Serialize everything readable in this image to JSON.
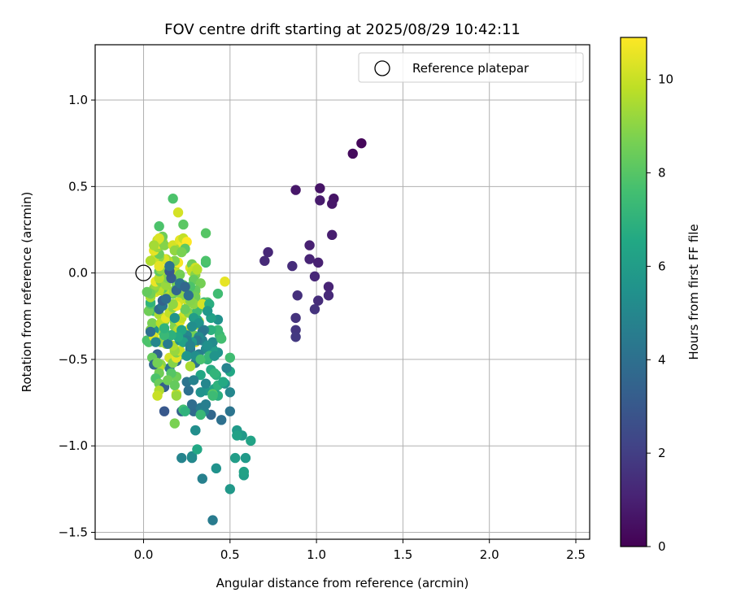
{
  "chart_data": {
    "type": "scatter",
    "title": "FOV centre drift starting at 2025/08/29 10:42:11",
    "xlabel": "Angular distance from reference (arcmin)",
    "ylabel": "Rotation from reference (arcmin)",
    "xlim": [
      -0.28,
      2.58
    ],
    "ylim": [
      -1.54,
      1.32
    ],
    "xticks": [
      0.0,
      0.5,
      1.0,
      1.5,
      2.0,
      2.5
    ],
    "xtick_labels": [
      "0.0",
      "0.5",
      "1.0",
      "1.5",
      "2.0",
      "2.5"
    ],
    "yticks": [
      1.0,
      0.5,
      0.0,
      -0.5,
      -1.0,
      -1.5
    ],
    "ytick_labels": [
      "1.0",
      "0.5",
      "0.0",
      "−0.5",
      "−1.0",
      "−1.5"
    ],
    "grid": true,
    "legend": {
      "position": "top-right",
      "entries": [
        "Reference platepar"
      ]
    },
    "reference_point": {
      "x": 0.0,
      "y": 0.0
    },
    "colorbar": {
      "label": "Hours from first FF file",
      "min": 0,
      "max": 10.9,
      "colormap": "viridis",
      "ticks": [
        0,
        2,
        4,
        6,
        8,
        10
      ],
      "tick_labels": [
        "0",
        "2",
        "4",
        "6",
        "8",
        "10"
      ]
    },
    "points": [
      [
        1.26,
        0.75,
        0.2
      ],
      [
        1.21,
        0.69,
        0.3
      ],
      [
        1.02,
        0.49,
        0.6
      ],
      [
        0.88,
        0.48,
        0.7
      ],
      [
        1.1,
        0.43,
        0.6
      ],
      [
        1.02,
        0.42,
        0.8
      ],
      [
        1.09,
        0.4,
        0.7
      ],
      [
        1.09,
        0.22,
        0.9
      ],
      [
        0.96,
        0.16,
        1.0
      ],
      [
        0.72,
        0.12,
        1.2
      ],
      [
        0.7,
        0.07,
        1.3
      ],
      [
        0.96,
        0.08,
        1.1
      ],
      [
        1.01,
        0.06,
        1.0
      ],
      [
        0.86,
        0.04,
        1.4
      ],
      [
        0.99,
        -0.02,
        1.2
      ],
      [
        1.07,
        -0.08,
        1.1
      ],
      [
        0.89,
        -0.13,
        1.5
      ],
      [
        1.07,
        -0.13,
        1.3
      ],
      [
        1.01,
        -0.16,
        1.4
      ],
      [
        0.99,
        -0.21,
        1.6
      ],
      [
        0.88,
        -0.26,
        1.6
      ],
      [
        0.88,
        -0.33,
        1.7
      ],
      [
        0.88,
        -0.37,
        1.8
      ],
      [
        0.4,
        -1.43,
        4.5
      ],
      [
        0.5,
        -1.25,
        5.8
      ],
      [
        0.34,
        -1.19,
        4.7
      ],
      [
        0.42,
        -1.13,
        5.5
      ],
      [
        0.58,
        -1.17,
        6.0
      ],
      [
        0.58,
        -1.15,
        6.2
      ],
      [
        0.22,
        -1.07,
        4.9
      ],
      [
        0.28,
        -1.07,
        5.0
      ],
      [
        0.28,
        -1.06,
        5.2
      ],
      [
        0.53,
        -1.07,
        6.0
      ],
      [
        0.59,
        -1.07,
        5.9
      ],
      [
        0.31,
        -1.02,
        6.5
      ],
      [
        0.62,
        -0.97,
        6.3
      ],
      [
        0.57,
        -0.94,
        5.8
      ],
      [
        0.54,
        -0.91,
        5.9
      ],
      [
        0.54,
        -0.94,
        6.2
      ],
      [
        0.3,
        -0.91,
        5.7
      ],
      [
        0.3,
        -0.91,
        5.3
      ],
      [
        0.39,
        -0.82,
        3.6
      ],
      [
        0.45,
        -0.85,
        4.0
      ],
      [
        0.5,
        -0.8,
        4.2
      ],
      [
        0.12,
        -0.8,
        3.0
      ],
      [
        0.22,
        -0.8,
        3.4
      ],
      [
        0.29,
        -0.8,
        3.8
      ],
      [
        0.33,
        -0.78,
        4.5
      ],
      [
        0.35,
        -0.8,
        4.8
      ],
      [
        0.23,
        -0.79,
        7.6
      ],
      [
        0.24,
        -0.8,
        7.0
      ],
      [
        0.33,
        -0.82,
        7.3
      ],
      [
        0.36,
        -0.76,
        4.6
      ],
      [
        0.28,
        -0.76,
        3.9
      ],
      [
        0.43,
        -0.71,
        6.8
      ],
      [
        0.5,
        -0.69,
        5.0
      ],
      [
        0.36,
        -0.68,
        5.8
      ],
      [
        0.4,
        -0.7,
        6.4
      ],
      [
        0.33,
        -0.69,
        5.5
      ],
      [
        0.26,
        -0.68,
        4.0
      ],
      [
        0.41,
        -0.67,
        6.3
      ],
      [
        0.4,
        -0.7,
        8.0
      ],
      [
        0.4,
        -0.71,
        7.4
      ],
      [
        0.43,
        -0.65,
        7.0
      ],
      [
        0.47,
        -0.64,
        5.6
      ],
      [
        0.5,
        -0.57,
        6.5
      ],
      [
        0.39,
        -0.56,
        6.7
      ],
      [
        0.46,
        -0.63,
        6.6
      ],
      [
        0.42,
        -0.59,
        6.9
      ],
      [
        0.41,
        -0.58,
        7.1
      ],
      [
        0.33,
        -0.59,
        6.5
      ],
      [
        0.25,
        -0.63,
        4.2
      ],
      [
        0.29,
        -0.62,
        4.8
      ],
      [
        0.36,
        -0.64,
        5.0
      ],
      [
        0.48,
        -0.55,
        4.9
      ],
      [
        0.5,
        -0.49,
        7.5
      ],
      [
        0.43,
        -0.46,
        5.6
      ],
      [
        0.36,
        -0.44,
        5.1
      ],
      [
        0.4,
        -0.44,
        6.0
      ],
      [
        0.4,
        -0.4,
        5.2
      ],
      [
        0.34,
        -0.39,
        4.8
      ],
      [
        0.3,
        -0.4,
        6.1
      ],
      [
        0.37,
        -0.42,
        5.4
      ],
      [
        0.27,
        -0.44,
        4.3
      ],
      [
        0.32,
        -0.47,
        4.6
      ],
      [
        0.37,
        -0.5,
        7.0
      ],
      [
        0.3,
        -0.52,
        4.1
      ],
      [
        0.27,
        -0.54,
        9.5
      ],
      [
        0.19,
        -0.6,
        8.5
      ],
      [
        0.15,
        -0.55,
        4.2
      ],
      [
        0.16,
        -0.58,
        8.0
      ],
      [
        0.19,
        -0.51,
        3.8
      ],
      [
        0.22,
        -0.47,
        7.8
      ],
      [
        0.1,
        -0.53,
        9.0
      ],
      [
        0.09,
        -0.55,
        9.8
      ],
      [
        0.09,
        -0.58,
        8.5
      ],
      [
        0.07,
        -0.61,
        7.8
      ],
      [
        0.09,
        -0.64,
        8.4
      ],
      [
        0.12,
        -0.66,
        3.3
      ],
      [
        0.09,
        -0.68,
        9.6
      ],
      [
        0.08,
        -0.71,
        10.0
      ],
      [
        0.19,
        -0.7,
        10.2
      ],
      [
        0.19,
        -0.71,
        9.2
      ],
      [
        0.18,
        -0.87,
        8.7
      ],
      [
        0.14,
        -0.62,
        8.5
      ],
      [
        0.18,
        -0.65,
        8.3
      ],
      [
        0.08,
        -0.47,
        3.5
      ],
      [
        0.05,
        -0.49,
        8.3
      ],
      [
        0.06,
        -0.53,
        3.6
      ],
      [
        0.08,
        -0.52,
        8.6
      ],
      [
        0.15,
        -0.49,
        10.2
      ],
      [
        0.17,
        -0.52,
        8.9
      ],
      [
        0.19,
        -0.49,
        10.5
      ],
      [
        0.19,
        -0.46,
        8.8
      ],
      [
        0.21,
        -0.45,
        10.0
      ],
      [
        0.18,
        -0.45,
        9.2
      ],
      [
        0.17,
        -0.42,
        9.6
      ],
      [
        0.1,
        -0.4,
        8.9
      ],
      [
        0.13,
        -0.41,
        9.4
      ],
      [
        0.14,
        -0.38,
        10.2
      ],
      [
        0.16,
        -0.36,
        9.0
      ],
      [
        0.12,
        -0.34,
        9.8
      ],
      [
        0.09,
        -0.33,
        9.2
      ],
      [
        0.04,
        -0.33,
        8.9
      ],
      [
        0.06,
        -0.33,
        5.5
      ],
      [
        0.03,
        -0.4,
        7.9
      ],
      [
        0.02,
        -0.39,
        7.8
      ],
      [
        0.06,
        -0.37,
        10.3
      ],
      [
        0.05,
        -0.29,
        8.7
      ],
      [
        0.06,
        -0.22,
        7.5
      ],
      [
        0.03,
        -0.22,
        8.5
      ],
      [
        0.04,
        -0.18,
        8.0
      ],
      [
        0.04,
        -0.17,
        7.0
      ],
      [
        0.09,
        -0.24,
        9.5
      ],
      [
        0.12,
        -0.28,
        8.9
      ],
      [
        0.1,
        -0.29,
        9.8
      ],
      [
        0.13,
        -0.26,
        10.5
      ],
      [
        0.15,
        -0.23,
        9.9
      ],
      [
        0.17,
        -0.2,
        9.0
      ],
      [
        0.18,
        -0.28,
        8.6
      ],
      [
        0.18,
        -0.31,
        8.8
      ],
      [
        0.2,
        -0.33,
        9.6
      ],
      [
        0.21,
        -0.28,
        10.4
      ],
      [
        0.22,
        -0.26,
        9.8
      ],
      [
        0.24,
        -0.23,
        10.1
      ],
      [
        0.26,
        -0.23,
        8.9
      ],
      [
        0.27,
        -0.32,
        10.4
      ],
      [
        0.29,
        -0.36,
        8.6
      ],
      [
        0.3,
        -0.4,
        10.8
      ],
      [
        0.3,
        -0.3,
        9.4
      ],
      [
        0.32,
        -0.28,
        9.8
      ],
      [
        0.31,
        -0.27,
        6.5
      ],
      [
        0.32,
        -0.2,
        9.2
      ],
      [
        0.31,
        -0.22,
        7.4
      ],
      [
        0.35,
        -0.17,
        7.6
      ],
      [
        0.37,
        -0.17,
        7.9
      ],
      [
        0.35,
        -0.18,
        6.9
      ],
      [
        0.26,
        -0.17,
        9.7
      ],
      [
        0.24,
        -0.15,
        10.0
      ],
      [
        0.3,
        -0.12,
        10.5
      ],
      [
        0.27,
        -0.12,
        10.2
      ],
      [
        0.22,
        -0.13,
        9.0
      ],
      [
        0.24,
        -0.21,
        8.4
      ],
      [
        0.2,
        -0.17,
        10.1
      ],
      [
        0.19,
        -0.19,
        10.8
      ],
      [
        0.18,
        -0.1,
        8.1
      ],
      [
        0.17,
        -0.12,
        8.5
      ],
      [
        0.16,
        -0.11,
        9.2
      ],
      [
        0.12,
        -0.11,
        9.7
      ],
      [
        0.11,
        -0.09,
        8.2
      ],
      [
        0.07,
        -0.11,
        10.4
      ],
      [
        0.09,
        -0.1,
        9.8
      ],
      [
        0.04,
        -0.14,
        9.5
      ],
      [
        0.06,
        -0.09,
        8.9
      ],
      [
        0.04,
        -0.12,
        8.6
      ],
      [
        0.02,
        -0.11,
        8.3
      ],
      [
        0.07,
        -0.07,
        9.2
      ],
      [
        0.07,
        -0.05,
        10.6
      ],
      [
        0.1,
        -0.05,
        8.9
      ],
      [
        0.13,
        -0.05,
        9.1
      ],
      [
        0.13,
        -0.03,
        8.6
      ],
      [
        0.12,
        -0.01,
        10.2
      ],
      [
        0.13,
        0.01,
        9.7
      ],
      [
        0.15,
        0.02,
        10.1
      ],
      [
        0.16,
        0.03,
        10.5
      ],
      [
        0.18,
        0.04,
        9.4
      ],
      [
        0.2,
        0.06,
        10.8
      ],
      [
        0.18,
        0.07,
        8.8
      ],
      [
        0.14,
        0.07,
        9.9
      ],
      [
        0.13,
        0.08,
        9.5
      ],
      [
        0.12,
        0.08,
        10.3
      ],
      [
        0.09,
        0.09,
        9.0
      ],
      [
        0.06,
        0.08,
        10.0
      ],
      [
        0.04,
        0.07,
        9.6
      ],
      [
        0.09,
        0.11,
        8.4
      ],
      [
        0.06,
        0.13,
        10.5
      ],
      [
        0.08,
        0.15,
        9.2
      ],
      [
        0.09,
        0.17,
        10.8
      ],
      [
        0.11,
        0.18,
        9.7
      ],
      [
        0.12,
        0.16,
        8.9
      ],
      [
        0.17,
        0.16,
        10.2
      ],
      [
        0.21,
        0.14,
        9.5
      ],
      [
        0.18,
        0.13,
        9.1
      ],
      [
        0.21,
        0.19,
        10.5
      ],
      [
        0.23,
        0.17,
        10.7
      ],
      [
        0.23,
        0.2,
        9.9
      ],
      [
        0.25,
        0.18,
        10.9
      ],
      [
        0.24,
        0.14,
        8.1
      ],
      [
        0.22,
        0.12,
        8.7
      ],
      [
        0.23,
        0.28,
        8.1
      ],
      [
        0.09,
        0.27,
        7.8
      ],
      [
        0.08,
        0.19,
        10.0
      ],
      [
        0.11,
        0.21,
        8.5
      ],
      [
        0.09,
        0.2,
        10.3
      ],
      [
        0.06,
        0.16,
        9.4
      ],
      [
        0.2,
        0.35,
        10.2
      ],
      [
        0.17,
        0.43,
        7.8
      ],
      [
        0.27,
        0.03,
        10.4
      ],
      [
        0.28,
        0.05,
        8.5
      ],
      [
        0.3,
        0.03,
        10.1
      ],
      [
        0.28,
        0.01,
        9.9
      ],
      [
        0.3,
        -0.01,
        8.9
      ],
      [
        0.31,
        0.02,
        9.7
      ],
      [
        0.29,
        -0.04,
        8.3
      ],
      [
        0.33,
        -0.06,
        8.6
      ],
      [
        0.3,
        -0.1,
        8.3
      ],
      [
        0.3,
        -0.14,
        8.5
      ],
      [
        0.29,
        -0.18,
        9.0
      ],
      [
        0.34,
        -0.18,
        10.2
      ],
      [
        0.27,
        -0.08,
        7.8
      ],
      [
        0.23,
        -0.07,
        8.2
      ],
      [
        0.19,
        -0.06,
        8.7
      ],
      [
        0.19,
        -0.03,
        9.0
      ],
      [
        0.17,
        -0.03,
        8.1
      ],
      [
        0.19,
        0.0,
        9.8
      ],
      [
        0.21,
        -0.01,
        8.6
      ],
      [
        0.13,
        -0.07,
        9.2
      ],
      [
        0.14,
        -0.03,
        8.8
      ],
      [
        0.09,
        -0.03,
        9.7
      ],
      [
        0.09,
        0.01,
        8.2
      ],
      [
        0.1,
        0.02,
        9.1
      ],
      [
        0.09,
        0.04,
        10.5
      ],
      [
        0.17,
        -0.18,
        9.1
      ],
      [
        0.27,
        -0.16,
        8.9
      ],
      [
        0.36,
        0.23,
        8.0
      ],
      [
        0.36,
        0.06,
        7.5
      ],
      [
        0.36,
        0.07,
        7.8
      ],
      [
        0.38,
        -0.18,
        6.8
      ],
      [
        0.43,
        -0.12,
        7.5
      ],
      [
        0.47,
        -0.05,
        10.5
      ],
      [
        0.44,
        -0.36,
        7.4
      ],
      [
        0.45,
        -0.38,
        7.6
      ],
      [
        0.43,
        -0.33,
        7.3
      ],
      [
        0.39,
        -0.33,
        6.9
      ],
      [
        0.43,
        -0.27,
        5.5
      ],
      [
        0.39,
        -0.26,
        6.2
      ],
      [
        0.37,
        -0.22,
        5.8
      ],
      [
        0.29,
        -0.26,
        6.0
      ],
      [
        0.32,
        -0.29,
        5.6
      ],
      [
        0.35,
        -0.33,
        4.6
      ],
      [
        0.34,
        -0.34,
        4.3
      ],
      [
        0.28,
        -0.31,
        5.3
      ],
      [
        0.32,
        -0.37,
        5.2
      ],
      [
        0.31,
        -0.39,
        4.4
      ],
      [
        0.28,
        -0.4,
        5.8
      ],
      [
        0.25,
        -0.36,
        5.0
      ],
      [
        0.25,
        -0.39,
        4.6
      ],
      [
        0.21,
        -0.39,
        5.4
      ],
      [
        0.23,
        -0.4,
        6.2
      ],
      [
        0.27,
        -0.42,
        4.8
      ],
      [
        0.25,
        -0.48,
        5.7
      ],
      [
        0.3,
        -0.48,
        5.3
      ],
      [
        0.33,
        -0.5,
        7.7
      ],
      [
        0.38,
        -0.48,
        7.2
      ],
      [
        0.41,
        -0.48,
        5.6
      ],
      [
        0.04,
        -0.34,
        4.0
      ],
      [
        0.09,
        -0.21,
        3.8
      ],
      [
        0.11,
        -0.19,
        4.3
      ],
      [
        0.11,
        -0.16,
        3.4
      ],
      [
        0.13,
        -0.15,
        3.9
      ],
      [
        0.19,
        -0.1,
        3.6
      ],
      [
        0.16,
        -0.03,
        3.2
      ],
      [
        0.21,
        -0.06,
        4.2
      ],
      [
        0.24,
        -0.08,
        3.6
      ],
      [
        0.26,
        -0.13,
        4.0
      ],
      [
        0.15,
        0.01,
        3.0
      ],
      [
        0.15,
        0.04,
        4.1
      ],
      [
        0.14,
        -0.41,
        4.5
      ],
      [
        0.07,
        -0.4,
        5.0
      ],
      [
        0.18,
        -0.26,
        5.6
      ],
      [
        0.22,
        -0.33,
        6.4
      ],
      [
        0.2,
        -0.37,
        6.6
      ],
      [
        0.16,
        -0.36,
        6.9
      ],
      [
        0.12,
        -0.36,
        7.3
      ],
      [
        0.12,
        -0.32,
        7.0
      ]
    ]
  }
}
